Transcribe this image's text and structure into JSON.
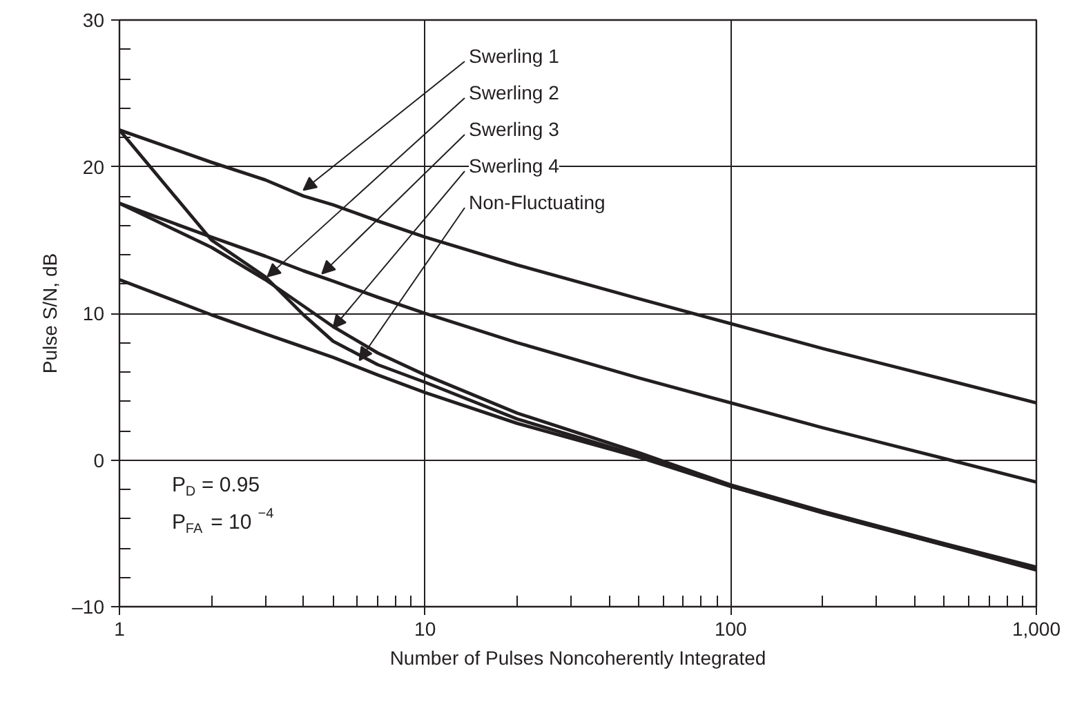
{
  "chart_data": {
    "type": "line",
    "xlabel": "Number of Pulses Noncoherently Integrated",
    "ylabel": "Pulse S/N, dB",
    "log": "x",
    "grid": true,
    "marker": "none",
    "line_style": "solid",
    "xlim": [
      1,
      1000
    ],
    "ylim": [
      -10,
      30
    ],
    "xticks": [
      1,
      10,
      100,
      {
        "value": 1000,
        "label": "1,000"
      }
    ],
    "yticks": [
      {
        "value": -10,
        "label": "–10"
      },
      0,
      10,
      20,
      30
    ],
    "x": [
      1,
      2,
      3,
      4,
      5,
      7,
      10,
      20,
      50,
      100,
      200,
      500,
      1000
    ],
    "series": [
      {
        "color": "#231f20",
        "values": [
          22.5,
          20.3,
          19.1,
          18.0,
          17.4,
          16.3,
          15.2,
          13.3,
          11.0,
          9.3,
          7.6,
          5.5,
          3.9
        ]
      },
      {
        "color": "#231f20",
        "values": [
          22.5,
          15.0,
          12.5,
          9.9,
          8.1,
          6.5,
          5.3,
          2.8,
          0.3,
          -1.8,
          -3.6,
          -5.8,
          -7.4
        ]
      },
      {
        "color": "#231f20",
        "values": [
          17.5,
          15.2,
          13.9,
          12.9,
          12.2,
          11.1,
          10.0,
          8.0,
          5.6,
          3.9,
          2.2,
          0.1,
          -1.5
        ]
      },
      {
        "color": "#231f20",
        "values": [
          17.5,
          14.5,
          12.3,
          10.5,
          9.1,
          7.3,
          5.8,
          3.2,
          0.5,
          -1.7,
          -3.5,
          -5.7,
          -7.3
        ]
      },
      {
        "color": "#231f20",
        "values": [
          12.3,
          9.9,
          8.6,
          7.7,
          7.0,
          5.8,
          4.6,
          2.5,
          0.2,
          -1.8,
          -3.6,
          -5.8,
          -7.5
        ]
      }
    ],
    "annotations": [
      {
        "text": "Swerling 1",
        "x": 4.0,
        "y": 18.4
      },
      {
        "text": "Swerling 2",
        "x": 3.05,
        "y": 12.5
      },
      {
        "text": "Swerling 3",
        "x": 4.6,
        "y": 12.7
      },
      {
        "text": "Swerling 4",
        "x": 5.0,
        "y": 9.0
      },
      {
        "text": "Non-Fluctuating",
        "x": 6.1,
        "y": 6.8
      },
      "P$_{D}$ = 0.95",
      "P$_{FA}$ = 10$^{−4}$"
    ]
  }
}
